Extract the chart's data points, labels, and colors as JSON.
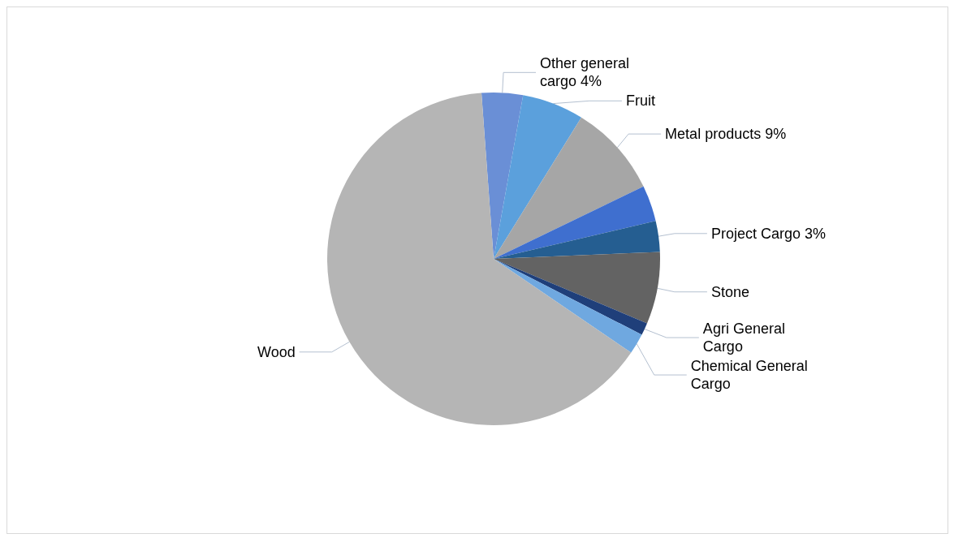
{
  "chart_data": {
    "type": "pie",
    "categories": [
      "Other general cargo",
      "Fruit",
      "Metal products",
      null,
      "Project Cargo",
      "Stone",
      "Agri General Cargo",
      "Chemical General Cargo",
      "Wood"
    ],
    "values": [
      4,
      6,
      9,
      3.5,
      3,
      7,
      1.2,
      2,
      64.3
    ],
    "value_labels": [
      "4%",
      null,
      "9%",
      null,
      "3%",
      null,
      null,
      null,
      null
    ],
    "colors": [
      "#6a8fd6",
      "#5ba0dc",
      "#a6a6a6",
      "#3f6fcf",
      "#255e91",
      "#636363",
      "#1f3f7a",
      "#6fa8e0",
      "#b5b5b5"
    ]
  }
}
